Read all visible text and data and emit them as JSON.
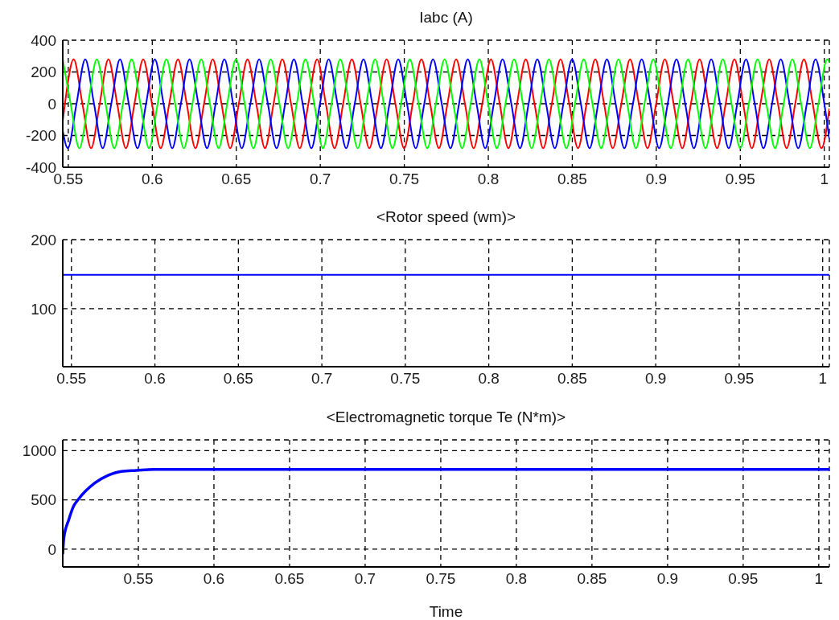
{
  "chart_data": [
    {
      "type": "line",
      "title": "Iabc (A)",
      "xlim": [
        0.5467,
        1.003
      ],
      "xticks": [
        0.55,
        0.6,
        0.65,
        0.7,
        0.75,
        0.8,
        0.85,
        0.9,
        0.95,
        1
      ],
      "ylim": [
        -400,
        400
      ],
      "yticks": [
        -400,
        -200,
        0,
        200,
        400
      ],
      "grid": true,
      "series": [
        {
          "color": "#ff0000",
          "x": [
            0.5467,
            0.548,
            0.5532,
            0.5584,
            0.5636,
            0.5687,
            0.5739,
            0.5791,
            0.5843,
            0.5894,
            0.5946,
            0.5998,
            0.605,
            0.6101,
            0.6153,
            0.6205,
            0.6257,
            0.6308,
            0.636,
            0.6412,
            0.6464,
            0.6515,
            0.6567,
            0.6619,
            0.6671,
            0.6722,
            0.6774,
            0.6826,
            0.6878,
            0.6929,
            0.6981,
            0.7033,
            0.7085,
            0.7136,
            0.7188,
            0.724,
            0.7292,
            0.7343,
            0.7395,
            0.7447,
            0.7499,
            0.755,
            0.7602,
            0.7654,
            0.7706,
            0.7757,
            0.7809,
            0.7861,
            0.7913,
            0.7964,
            0.8016,
            0.8068,
            0.812,
            0.8171,
            0.8223,
            0.8275,
            0.8327,
            0.8378,
            0.843,
            0.8482,
            0.8534,
            0.8585,
            0.8637,
            0.8689,
            0.8741,
            0.8792,
            0.8844,
            0.8896,
            0.8948,
            0.8999,
            0.9051,
            0.9103,
            0.9155,
            0.9206,
            0.9258,
            0.931,
            0.9362,
            0.9413,
            0.9465,
            0.9517,
            0.9569,
            0.962,
            0.9672,
            0.9724,
            0.9776,
            0.9827,
            0.9879,
            0.9931,
            0.9983,
            1.003
          ],
          "values": [
            -110,
            0,
            280,
            0,
            -280,
            0,
            280,
            0,
            -280,
            0,
            280,
            0,
            -280,
            0,
            280,
            0,
            -280,
            0,
            280,
            0,
            -280,
            0,
            280,
            0,
            -280,
            0,
            280,
            0,
            -280,
            0,
            280,
            0,
            -280,
            0,
            280,
            0,
            -280,
            0,
            280,
            0,
            -280,
            0,
            280,
            0,
            -280,
            0,
            280,
            0,
            -280,
            0,
            280,
            0,
            -280,
            0,
            280,
            0,
            -280,
            0,
            280,
            0,
            -280,
            0,
            280,
            0,
            -280,
            0,
            280,
            0,
            -280,
            0,
            280,
            0,
            -280,
            0,
            280,
            0,
            -280,
            0,
            280,
            0,
            -280,
            0,
            280,
            0,
            -280,
            0,
            280,
            0,
            -280,
            -30
          ]
        },
        {
          "color": "#0000ff",
          "x": [
            0.5467,
            0.5497,
            0.5549,
            0.5601,
            0.5653,
            0.5705,
            0.5756,
            0.5808,
            0.586,
            0.5912,
            0.5963,
            0.6015,
            0.6067,
            0.6119,
            0.617,
            0.6222,
            0.6274,
            0.6326,
            0.6377,
            0.6429,
            0.6481,
            0.6533,
            0.6584,
            0.6636,
            0.6688,
            0.674,
            0.6791,
            0.6843,
            0.6895,
            0.6947,
            0.6998,
            0.705,
            0.7102,
            0.7154,
            0.7205,
            0.7257,
            0.7309,
            0.7361,
            0.7412,
            0.7464,
            0.7516,
            0.7568,
            0.7619,
            0.7671,
            0.7723,
            0.7775,
            0.7826,
            0.7878,
            0.793,
            0.7982,
            0.8033,
            0.8085,
            0.8137,
            0.8189,
            0.824,
            0.8292,
            0.8344,
            0.8396,
            0.8447,
            0.8499,
            0.8551,
            0.8603,
            0.8654,
            0.8706,
            0.8758,
            0.881,
            0.8861,
            0.8913,
            0.8965,
            0.9017,
            0.9068,
            0.912,
            0.9172,
            0.9224,
            0.9275,
            0.9327,
            0.9379,
            0.9431,
            0.9482,
            0.9534,
            0.9586,
            0.9638,
            0.9689,
            0.9741,
            0.9793,
            0.9845,
            0.9896,
            0.9948,
            1.0,
            1.003
          ],
          "values": [
            -170,
            -280,
            0,
            280,
            0,
            -280,
            0,
            280,
            0,
            -280,
            0,
            280,
            0,
            -280,
            0,
            280,
            0,
            -280,
            0,
            280,
            0,
            -280,
            0,
            280,
            0,
            -280,
            0,
            280,
            0,
            -280,
            0,
            280,
            0,
            -280,
            0,
            280,
            0,
            -280,
            0,
            280,
            0,
            -280,
            0,
            280,
            0,
            -280,
            0,
            280,
            0,
            -280,
            0,
            280,
            0,
            -280,
            0,
            280,
            0,
            -280,
            0,
            280,
            0,
            -280,
            0,
            280,
            0,
            -280,
            0,
            280,
            0,
            -280,
            0,
            280,
            0,
            -280,
            0,
            280,
            0,
            -280,
            0,
            280,
            0,
            -280,
            0,
            280,
            0,
            -280,
            0,
            280,
            0,
            -220
          ]
        },
        {
          "color": "#00ff00",
          "x": [
            0.5467,
            0.5514,
            0.5566,
            0.5618,
            0.567,
            0.5722,
            0.5774,
            0.5825,
            0.5877,
            0.5929,
            0.5981,
            0.6032,
            0.6084,
            0.6136,
            0.6188,
            0.6239,
            0.6291,
            0.6343,
            0.6395,
            0.6446,
            0.6498,
            0.655,
            0.6602,
            0.6653,
            0.6705,
            0.6757,
            0.6809,
            0.686,
            0.6912,
            0.6964,
            0.7016,
            0.7067,
            0.7119,
            0.7171,
            0.7223,
            0.7274,
            0.7326,
            0.7378,
            0.743,
            0.7481,
            0.7533,
            0.7585,
            0.7637,
            0.7688,
            0.774,
            0.7792,
            0.7844,
            0.7895,
            0.7947,
            0.7999,
            0.8051,
            0.8102,
            0.8154,
            0.8206,
            0.8258,
            0.8309,
            0.8361,
            0.8413,
            0.8465,
            0.8516,
            0.8568,
            0.862,
            0.8672,
            0.8723,
            0.8775,
            0.8827,
            0.8879,
            0.893,
            0.8982,
            0.9034,
            0.9086,
            0.9137,
            0.9189,
            0.9241,
            0.9293,
            0.9344,
            0.9396,
            0.9448,
            0.95,
            0.9551,
            0.9603,
            0.9655,
            0.9707,
            0.9758,
            0.981,
            0.9862,
            0.9914,
            0.9965,
            1.0017,
            1.003
          ],
          "values": [
            280,
            0,
            -280,
            0,
            280,
            0,
            -280,
            0,
            280,
            0,
            -280,
            0,
            280,
            0,
            -280,
            0,
            280,
            0,
            -280,
            0,
            280,
            0,
            -280,
            0,
            280,
            0,
            -280,
            0,
            280,
            0,
            -280,
            0,
            280,
            0,
            -280,
            0,
            280,
            0,
            -280,
            0,
            280,
            0,
            -280,
            0,
            280,
            0,
            -280,
            0,
            280,
            0,
            -280,
            0,
            280,
            0,
            -280,
            0,
            280,
            0,
            -280,
            0,
            280,
            0,
            -280,
            0,
            280,
            0,
            -280,
            0,
            280,
            0,
            -280,
            0,
            280,
            0,
            -280,
            0,
            280,
            0,
            -280,
            0,
            280,
            0,
            -280,
            0,
            280,
            0,
            -280,
            0,
            280,
            260
          ]
        }
      ]
    },
    {
      "type": "line",
      "title": "<Rotor speed (wm)>",
      "xlim": [
        0.5448,
        1.004
      ],
      "xticks": [
        0.55,
        0.6,
        0.65,
        0.7,
        0.75,
        0.8,
        0.85,
        0.9,
        0.95,
        1
      ],
      "ylim": [
        16,
        200
      ],
      "yticks": [
        100,
        200
      ],
      "grid": true,
      "series": [
        {
          "color": "#0000ff",
          "x": [
            0.5448,
            1.004
          ],
          "values": [
            149,
            149
          ]
        }
      ]
    },
    {
      "type": "line",
      "title": "<Electromagnetic torque Te (N*m)>",
      "xlabel": "Time",
      "xlim": [
        0.5,
        1.007
      ],
      "xticks": [
        0.55,
        0.6,
        0.65,
        0.7,
        0.75,
        0.8,
        0.85,
        0.9,
        0.95,
        1
      ],
      "ylim": [
        -180,
        1110
      ],
      "yticks": [
        0,
        500,
        1000
      ],
      "grid": true,
      "series": [
        {
          "color": "#0000ff",
          "x": [
            0.5,
            0.5007,
            0.504,
            0.5073,
            0.51,
            0.521,
            0.53,
            0.5387,
            0.5487,
            0.56,
            0.6,
            0.7,
            0.8,
            0.9,
            1.0,
            1.007
          ],
          "values": [
            -50,
            110,
            300,
            440,
            500,
            670,
            750,
            790,
            800,
            810,
            810,
            810,
            810,
            810,
            810,
            810
          ]
        }
      ]
    }
  ]
}
